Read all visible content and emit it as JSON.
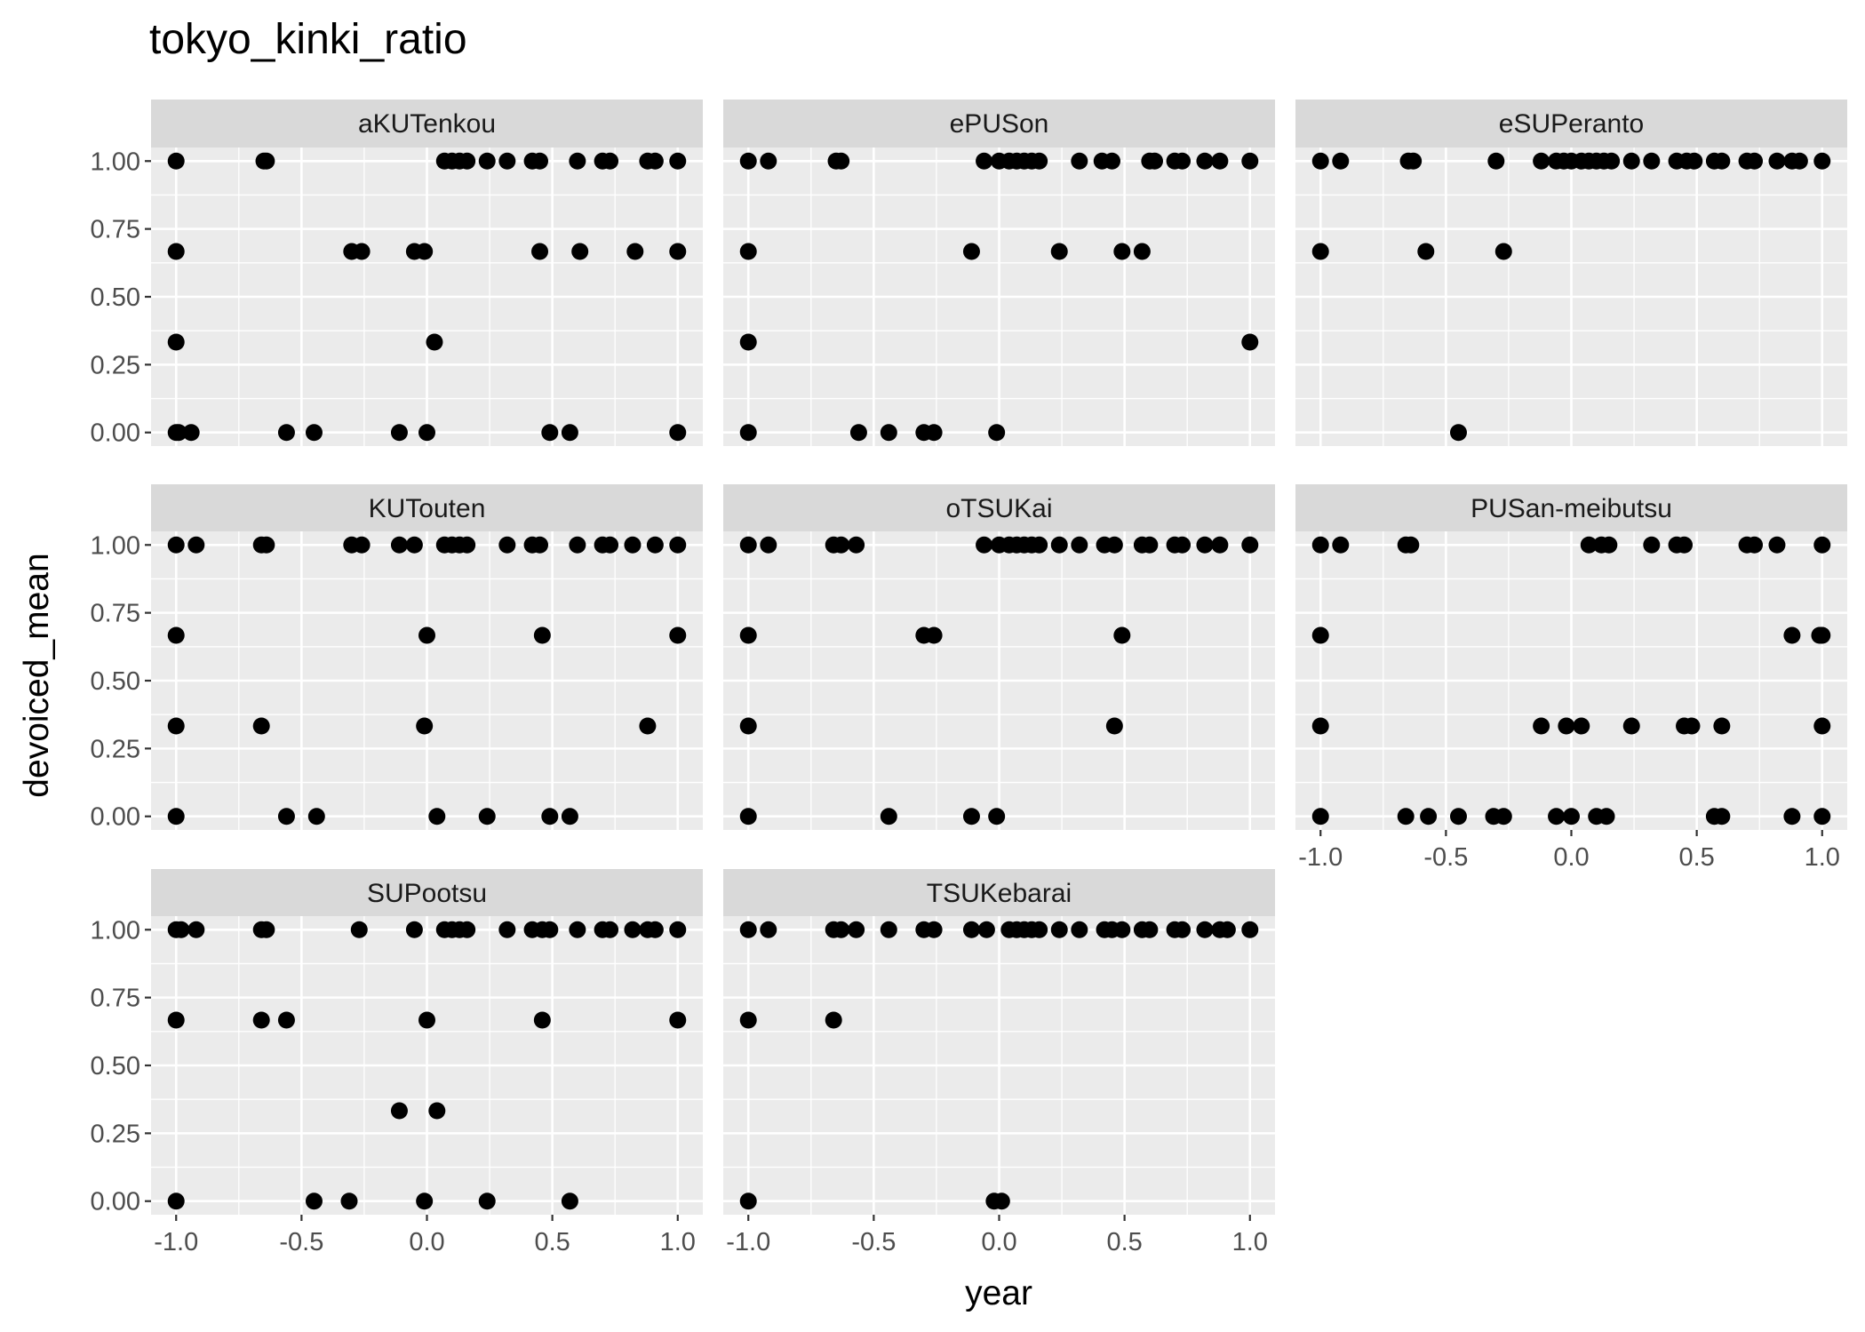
{
  "chart_data": {
    "type": "scatter",
    "title": "tokyo_kinki_ratio",
    "xlabel": "year",
    "ylabel": "devoiced_mean",
    "xlim": [
      -1.1,
      1.1
    ],
    "ylim": [
      -0.05,
      1.05
    ],
    "x_ticks": [
      -1.0,
      -0.5,
      0.0,
      0.5,
      1.0
    ],
    "x_tick_labels": [
      "-1.0",
      "-0.5",
      "0.0",
      "0.5",
      "1.0"
    ],
    "y_ticks": [
      0.0,
      0.25,
      0.5,
      0.75,
      1.0
    ],
    "y_tick_labels": [
      "0.00",
      "0.25",
      "0.50",
      "0.75",
      "1.00"
    ],
    "grid": true,
    "facets": [
      {
        "name": "aKUTenkou",
        "points": [
          [
            -1.0,
            1
          ],
          [
            -0.65,
            1
          ],
          [
            -0.64,
            1
          ],
          [
            0.07,
            1
          ],
          [
            0.1,
            1
          ],
          [
            0.13,
            1
          ],
          [
            0.16,
            1
          ],
          [
            0.24,
            1
          ],
          [
            0.32,
            1
          ],
          [
            0.42,
            1
          ],
          [
            0.45,
            1
          ],
          [
            0.6,
            1
          ],
          [
            0.7,
            1
          ],
          [
            0.73,
            1
          ],
          [
            0.88,
            1
          ],
          [
            0.91,
            1
          ],
          [
            1.0,
            1
          ],
          [
            -1.0,
            0.667
          ],
          [
            -0.3,
            0.667
          ],
          [
            -0.26,
            0.667
          ],
          [
            -0.05,
            0.667
          ],
          [
            -0.01,
            0.667
          ],
          [
            0.45,
            0.667
          ],
          [
            0.61,
            0.667
          ],
          [
            0.83,
            0.667
          ],
          [
            1.0,
            0.667
          ],
          [
            -1.0,
            0.333
          ],
          [
            0.03,
            0.333
          ],
          [
            -1.0,
            0
          ],
          [
            -0.99,
            0
          ],
          [
            -0.94,
            0
          ],
          [
            -0.56,
            0
          ],
          [
            -0.45,
            0
          ],
          [
            -0.11,
            0
          ],
          [
            0.0,
            0
          ],
          [
            0.49,
            0
          ],
          [
            0.57,
            0
          ],
          [
            1.0,
            0
          ]
        ]
      },
      {
        "name": "ePUSon",
        "points": [
          [
            -1.0,
            1
          ],
          [
            -0.92,
            1
          ],
          [
            -0.65,
            1
          ],
          [
            -0.63,
            1
          ],
          [
            -0.06,
            1
          ],
          [
            0.0,
            1
          ],
          [
            0.04,
            1
          ],
          [
            0.07,
            1
          ],
          [
            0.1,
            1
          ],
          [
            0.13,
            1
          ],
          [
            0.16,
            1
          ],
          [
            0.32,
            1
          ],
          [
            0.41,
            1
          ],
          [
            0.45,
            1
          ],
          [
            0.6,
            1
          ],
          [
            0.62,
            1
          ],
          [
            0.7,
            1
          ],
          [
            0.73,
            1
          ],
          [
            0.82,
            1
          ],
          [
            0.88,
            1
          ],
          [
            1.0,
            1
          ],
          [
            -1.0,
            0.667
          ],
          [
            -0.11,
            0.667
          ],
          [
            0.24,
            0.667
          ],
          [
            0.49,
            0.667
          ],
          [
            0.57,
            0.667
          ],
          [
            -1.0,
            0.333
          ],
          [
            1.0,
            0.333
          ],
          [
            -1.0,
            0
          ],
          [
            -0.56,
            0
          ],
          [
            -0.44,
            0
          ],
          [
            -0.3,
            0
          ],
          [
            -0.26,
            0
          ],
          [
            -0.01,
            0
          ]
        ]
      },
      {
        "name": "eSUPeranto",
        "points": [
          [
            -1.0,
            1
          ],
          [
            -0.92,
            1
          ],
          [
            -0.65,
            1
          ],
          [
            -0.63,
            1
          ],
          [
            -0.3,
            1
          ],
          [
            -0.12,
            1
          ],
          [
            -0.06,
            1
          ],
          [
            -0.03,
            1
          ],
          [
            0.0,
            1
          ],
          [
            0.04,
            1
          ],
          [
            0.07,
            1
          ],
          [
            0.1,
            1
          ],
          [
            0.13,
            1
          ],
          [
            0.16,
            1
          ],
          [
            0.24,
            1
          ],
          [
            0.32,
            1
          ],
          [
            0.42,
            1
          ],
          [
            0.46,
            1
          ],
          [
            0.49,
            1
          ],
          [
            0.57,
            1
          ],
          [
            0.6,
            1
          ],
          [
            0.7,
            1
          ],
          [
            0.73,
            1
          ],
          [
            0.82,
            1
          ],
          [
            0.88,
            1
          ],
          [
            0.91,
            1
          ],
          [
            1.0,
            1
          ],
          [
            -1.0,
            0.667
          ],
          [
            -0.58,
            0.667
          ],
          [
            -0.27,
            0.667
          ],
          [
            -0.45,
            0
          ]
        ]
      },
      {
        "name": "KUTouten",
        "points": [
          [
            -1.0,
            1
          ],
          [
            -0.92,
            1
          ],
          [
            -0.66,
            1
          ],
          [
            -0.64,
            1
          ],
          [
            -0.3,
            1
          ],
          [
            -0.26,
            1
          ],
          [
            -0.11,
            1
          ],
          [
            -0.05,
            1
          ],
          [
            0.07,
            1
          ],
          [
            0.1,
            1
          ],
          [
            0.13,
            1
          ],
          [
            0.16,
            1
          ],
          [
            0.32,
            1
          ],
          [
            0.42,
            1
          ],
          [
            0.45,
            1
          ],
          [
            0.6,
            1
          ],
          [
            0.7,
            1
          ],
          [
            0.73,
            1
          ],
          [
            0.82,
            1
          ],
          [
            0.91,
            1
          ],
          [
            1.0,
            1
          ],
          [
            -1.0,
            0.667
          ],
          [
            0.0,
            0.667
          ],
          [
            0.46,
            0.667
          ],
          [
            1.0,
            0.667
          ],
          [
            -1.0,
            0.333
          ],
          [
            -0.66,
            0.333
          ],
          [
            -0.01,
            0.333
          ],
          [
            0.88,
            0.333
          ],
          [
            -1.0,
            0
          ],
          [
            -0.56,
            0
          ],
          [
            -0.44,
            0
          ],
          [
            0.04,
            0
          ],
          [
            0.24,
            0
          ],
          [
            0.49,
            0
          ],
          [
            0.57,
            0
          ]
        ]
      },
      {
        "name": "oTSUKai",
        "points": [
          [
            -1.0,
            1
          ],
          [
            -0.92,
            1
          ],
          [
            -0.66,
            1
          ],
          [
            -0.63,
            1
          ],
          [
            -0.57,
            1
          ],
          [
            -0.06,
            1
          ],
          [
            0.0,
            1
          ],
          [
            0.04,
            1
          ],
          [
            0.07,
            1
          ],
          [
            0.1,
            1
          ],
          [
            0.13,
            1
          ],
          [
            0.16,
            1
          ],
          [
            0.24,
            1
          ],
          [
            0.32,
            1
          ],
          [
            0.42,
            1
          ],
          [
            0.46,
            1
          ],
          [
            0.57,
            1
          ],
          [
            0.6,
            1
          ],
          [
            0.7,
            1
          ],
          [
            0.73,
            1
          ],
          [
            0.82,
            1
          ],
          [
            0.88,
            1
          ],
          [
            1.0,
            1
          ],
          [
            -1.0,
            0.667
          ],
          [
            -0.3,
            0.667
          ],
          [
            -0.26,
            0.667
          ],
          [
            0.49,
            0.667
          ],
          [
            -1.0,
            0.333
          ],
          [
            0.46,
            0.333
          ],
          [
            -1.0,
            0
          ],
          [
            -0.44,
            0
          ],
          [
            -0.11,
            0
          ],
          [
            -0.01,
            0
          ]
        ]
      },
      {
        "name": "PUSan-meibutsu",
        "points": [
          [
            -1.0,
            1
          ],
          [
            -0.92,
            1
          ],
          [
            -0.66,
            1
          ],
          [
            -0.64,
            1
          ],
          [
            0.07,
            1
          ],
          [
            0.12,
            1
          ],
          [
            0.15,
            1
          ],
          [
            0.32,
            1
          ],
          [
            0.42,
            1
          ],
          [
            0.45,
            1
          ],
          [
            0.7,
            1
          ],
          [
            0.73,
            1
          ],
          [
            0.82,
            1
          ],
          [
            1.0,
            1
          ],
          [
            -1.0,
            0.667
          ],
          [
            0.88,
            0.667
          ],
          [
            0.99,
            0.667
          ],
          [
            1.0,
            0.667
          ],
          [
            -1.0,
            0.333
          ],
          [
            -0.12,
            0.333
          ],
          [
            -0.02,
            0.333
          ],
          [
            0.04,
            0.333
          ],
          [
            0.24,
            0.333
          ],
          [
            0.45,
            0.333
          ],
          [
            0.48,
            0.333
          ],
          [
            0.6,
            0.333
          ],
          [
            1.0,
            0.333
          ],
          [
            -1.0,
            0
          ],
          [
            -0.66,
            0
          ],
          [
            -0.57,
            0
          ],
          [
            -0.45,
            0
          ],
          [
            -0.31,
            0
          ],
          [
            -0.27,
            0
          ],
          [
            -0.06,
            0
          ],
          [
            0.0,
            0
          ],
          [
            0.1,
            0
          ],
          [
            0.14,
            0
          ],
          [
            0.57,
            0
          ],
          [
            0.6,
            0
          ],
          [
            0.88,
            0
          ],
          [
            1.0,
            0
          ]
        ]
      },
      {
        "name": "SUPootsu",
        "points": [
          [
            -1.0,
            1
          ],
          [
            -0.98,
            1
          ],
          [
            -0.92,
            1
          ],
          [
            -0.66,
            1
          ],
          [
            -0.64,
            1
          ],
          [
            -0.27,
            1
          ],
          [
            -0.05,
            1
          ],
          [
            0.07,
            1
          ],
          [
            0.1,
            1
          ],
          [
            0.13,
            1
          ],
          [
            0.16,
            1
          ],
          [
            0.32,
            1
          ],
          [
            0.42,
            1
          ],
          [
            0.46,
            1
          ],
          [
            0.49,
            1
          ],
          [
            0.6,
            1
          ],
          [
            0.7,
            1
          ],
          [
            0.73,
            1
          ],
          [
            0.82,
            1
          ],
          [
            0.88,
            1
          ],
          [
            0.91,
            1
          ],
          [
            1.0,
            1
          ],
          [
            -1.0,
            0.667
          ],
          [
            -0.66,
            0.667
          ],
          [
            -0.56,
            0.667
          ],
          [
            0.0,
            0.667
          ],
          [
            0.46,
            0.667
          ],
          [
            1.0,
            0.667
          ],
          [
            -0.11,
            0.333
          ],
          [
            0.04,
            0.333
          ],
          [
            -1.0,
            0
          ],
          [
            -0.45,
            0
          ],
          [
            -0.31,
            0
          ],
          [
            -0.01,
            0
          ],
          [
            0.24,
            0
          ],
          [
            0.57,
            0
          ]
        ]
      },
      {
        "name": "TSUKebarai",
        "points": [
          [
            -1.0,
            1
          ],
          [
            -0.92,
            1
          ],
          [
            -0.66,
            1
          ],
          [
            -0.63,
            1
          ],
          [
            -0.57,
            1
          ],
          [
            -0.44,
            1
          ],
          [
            -0.3,
            1
          ],
          [
            -0.26,
            1
          ],
          [
            -0.11,
            1
          ],
          [
            -0.05,
            1
          ],
          [
            0.04,
            1
          ],
          [
            0.07,
            1
          ],
          [
            0.1,
            1
          ],
          [
            0.13,
            1
          ],
          [
            0.16,
            1
          ],
          [
            0.24,
            1
          ],
          [
            0.32,
            1
          ],
          [
            0.42,
            1
          ],
          [
            0.45,
            1
          ],
          [
            0.49,
            1
          ],
          [
            0.57,
            1
          ],
          [
            0.6,
            1
          ],
          [
            0.7,
            1
          ],
          [
            0.73,
            1
          ],
          [
            0.82,
            1
          ],
          [
            0.88,
            1
          ],
          [
            0.91,
            1
          ],
          [
            1.0,
            1
          ],
          [
            -1.0,
            0.667
          ],
          [
            -0.66,
            0.667
          ],
          [
            -1.0,
            0
          ],
          [
            -0.02,
            0
          ],
          [
            0.01,
            0
          ]
        ]
      }
    ]
  }
}
